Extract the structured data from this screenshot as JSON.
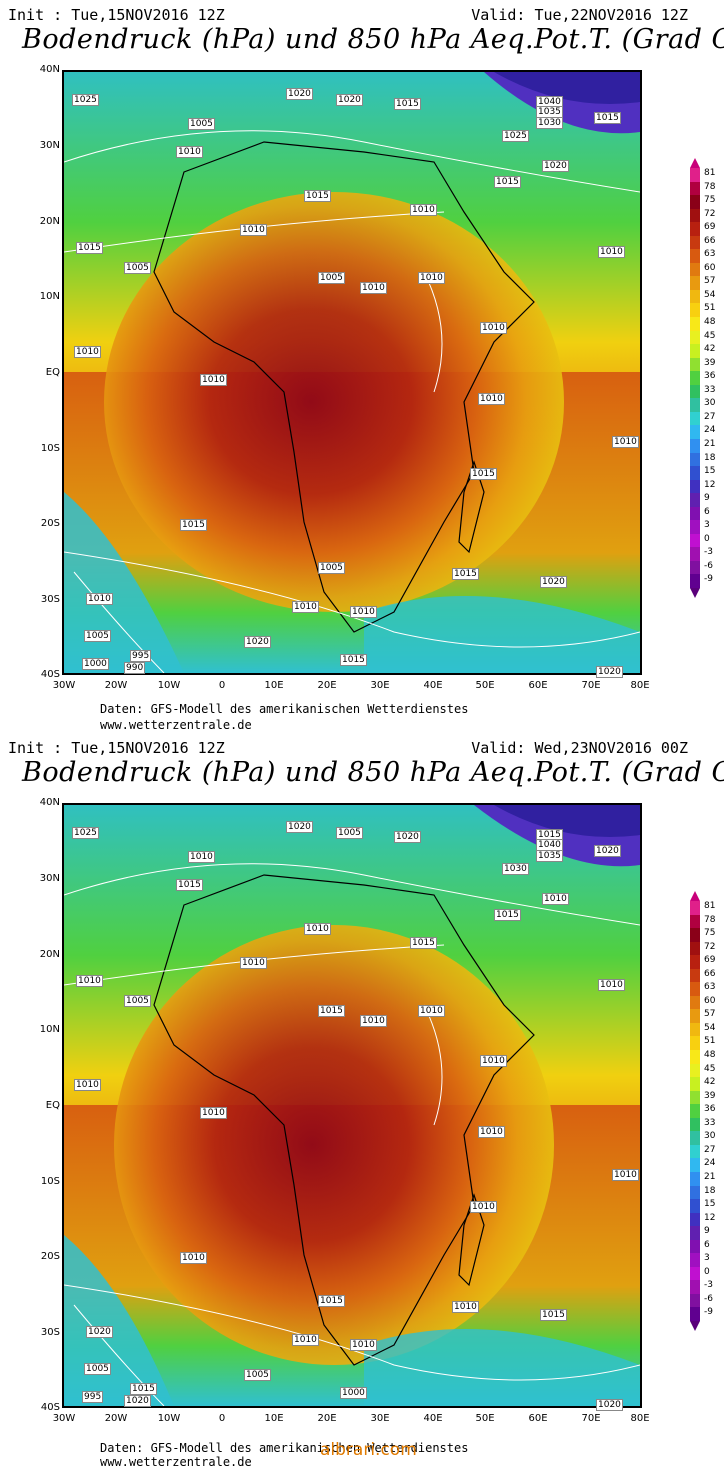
{
  "panels": [
    {
      "init": "Init : Tue,15NOV2016 12Z",
      "valid": "Valid: Tue,22NOV2016 12Z",
      "title": "Bodendruck (hPa) und 850 hPa Aeq.Pot.T. (Grad C)",
      "credit_line1": "Daten: GFS-Modell des amerikanischen Wetterdienstes",
      "credit_line2": "www.wetterzentrale.de",
      "isobar_labels": [
        "1025",
        "1020",
        "1020",
        "1015",
        "1040",
        "1035",
        "1030",
        "1025",
        "1015",
        "1005",
        "1010",
        "1020",
        "1015",
        "1015",
        "1010",
        "1010",
        "1015",
        "1010",
        "1005",
        "1005",
        "1010",
        "1010",
        "1010",
        "1010",
        "1010",
        "1010",
        "1015",
        "1010",
        "1015",
        "1005",
        "1015",
        "1020",
        "1010",
        "1010",
        "1010",
        "1005",
        "995",
        "990",
        "1000",
        "1020",
        "1015",
        "1020"
      ]
    },
    {
      "init": "Init : Tue,15NOV2016 12Z",
      "valid": "Valid: Wed,23NOV2016 00Z",
      "title": "Bodendruck (hPa) und 850 hPa Aeq.Pot.T. (Grad C)",
      "credit_line1": "Daten: GFS-Modell des amerikanischen Wetterdienstes",
      "credit_line2": "www.wetterzentrale.de",
      "isobar_labels": [
        "1025",
        "1020",
        "1005",
        "1020",
        "1015",
        "1040",
        "1035",
        "1030",
        "1020",
        "1010",
        "1015",
        "1010",
        "1010",
        "1015",
        "1015",
        "1010",
        "1010",
        "1010",
        "1005",
        "1015",
        "1010",
        "1010",
        "1010",
        "1010",
        "1010",
        "1010",
        "1010",
        "1010",
        "1010",
        "1015",
        "1010",
        "1015",
        "1020",
        "1010",
        "1010",
        "1005",
        "1015",
        "1020",
        "995",
        "1005",
        "1000",
        "1020"
      ]
    }
  ],
  "lat_labels": [
    "40N",
    "30N",
    "20N",
    "10N",
    "EQ",
    "10S",
    "20S",
    "30S",
    "40S"
  ],
  "lon_labels": [
    "30W",
    "20W",
    "10W",
    "0",
    "10E",
    "20E",
    "30E",
    "40E",
    "50E",
    "60E",
    "70E",
    "80E"
  ],
  "scale_ticks": [
    "81",
    "78",
    "75",
    "72",
    "69",
    "66",
    "63",
    "60",
    "57",
    "54",
    "51",
    "48",
    "45",
    "42",
    "39",
    "36",
    "33",
    "30",
    "27",
    "24",
    "21",
    "18",
    "15",
    "12",
    "9",
    "6",
    "3",
    "0",
    "-3",
    "-6",
    "-9"
  ],
  "scale_colors": [
    "#e0208a",
    "#b00040",
    "#8a0018",
    "#a01010",
    "#b82010",
    "#c83a10",
    "#d85a10",
    "#e07a10",
    "#e89a10",
    "#f0b810",
    "#f8d010",
    "#f8e818",
    "#e8f020",
    "#c8f020",
    "#90e030",
    "#50d040",
    "#30c060",
    "#30c0a0",
    "#30d0d0",
    "#30b8f0",
    "#3090f0",
    "#3070e0",
    "#3050d0",
    "#4030c0",
    "#6020b0",
    "#8010b0",
    "#a010c0",
    "#c010d0",
    "#a010b0",
    "#8010a0",
    "#600090"
  ],
  "watermark": "albrari.com"
}
